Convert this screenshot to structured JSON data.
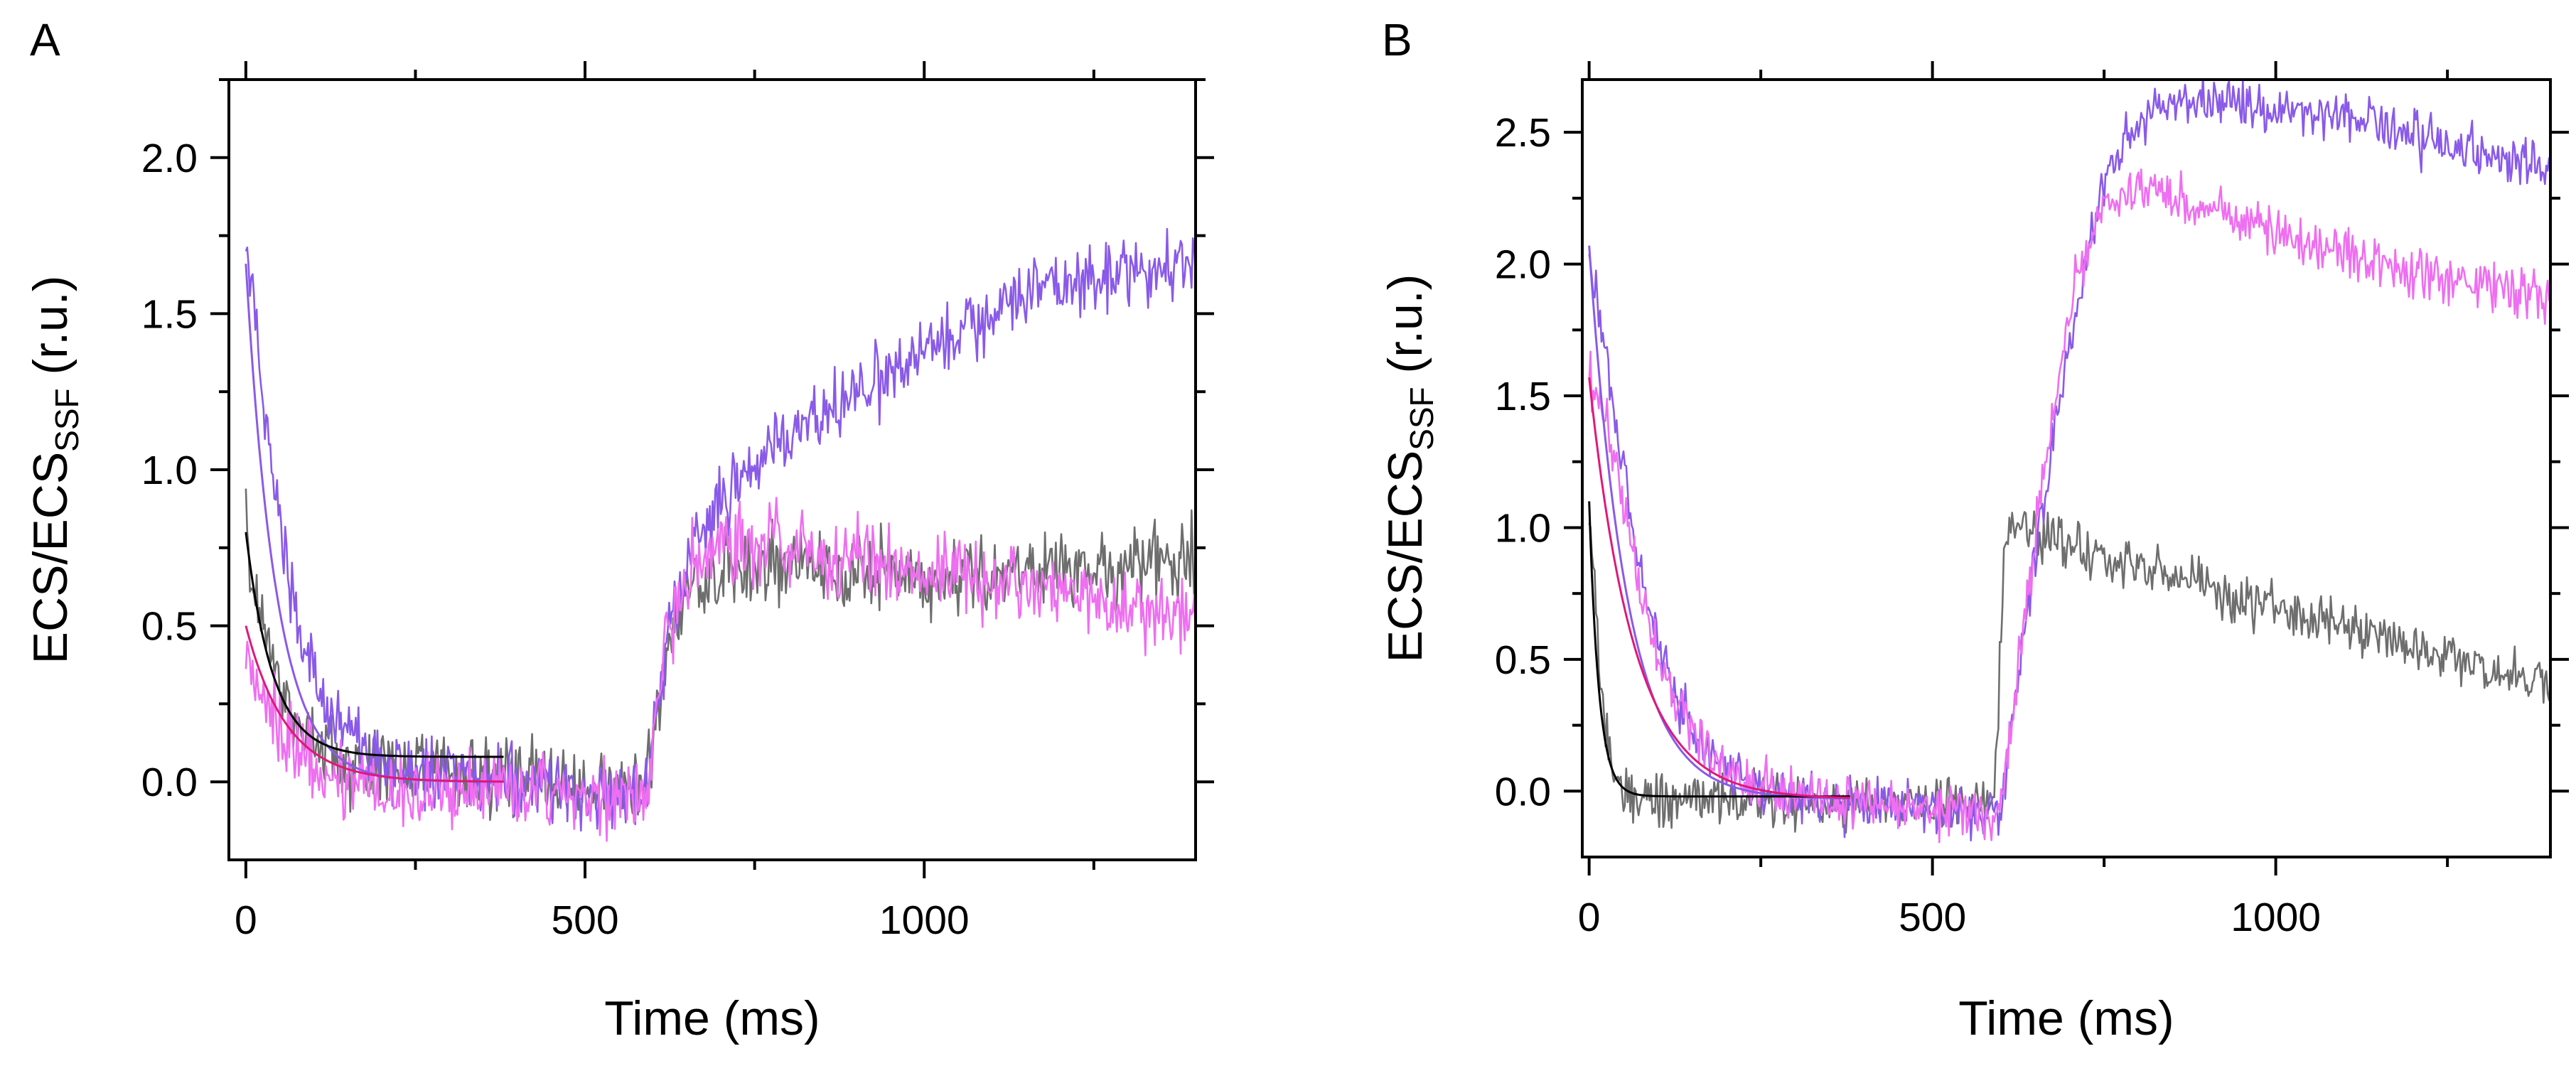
{
  "chart_data": [
    {
      "panel": "A",
      "type": "line",
      "xlabel": "Time (ms)",
      "ylabel": {
        "main": "ECS/ECS",
        "subscript": "SSF",
        "unit": " (r.u.)"
      },
      "xlim": [
        -25,
        1400
      ],
      "ylim": [
        -0.25,
        2.25
      ],
      "xticks": [
        0,
        500,
        1000
      ],
      "xtick_labels": [
        "0",
        "500",
        "1000"
      ],
      "yticks": [
        0.0,
        0.5,
        1.0,
        1.5,
        2.0
      ],
      "ytick_labels": [
        "0.0",
        "0.5",
        "1.0",
        "1.5",
        "2.0"
      ],
      "colors": {
        "purple": "#8a5ae8",
        "pink": "#ee6ff0",
        "gray": "#6e6e6e",
        "fit_black": "#000000",
        "fit_magenta": "#e0187a"
      },
      "series": [
        {
          "name": "gray trace",
          "color": "#6e6e6e",
          "noise": 0.09,
          "x": [
            0,
            20,
            40,
            60,
            100,
            150,
            200,
            300,
            400,
            500,
            590,
            620,
            650,
            700,
            800,
            900,
            1000,
            1100,
            1200,
            1300,
            1400
          ],
          "y": [
            0.8,
            0.55,
            0.38,
            0.25,
            0.12,
            0.06,
            0.04,
            0.03,
            0.01,
            -0.02,
            -0.03,
            0.4,
            0.62,
            0.68,
            0.7,
            0.68,
            0.67,
            0.68,
            0.68,
            0.69,
            0.7
          ]
        },
        {
          "name": "purple trace",
          "color": "#8a5ae8",
          "noise": 0.08,
          "x": [
            0,
            20,
            40,
            60,
            80,
            100,
            130,
            160,
            200,
            300,
            400,
            500,
            590,
            620,
            650,
            700,
            750,
            800,
            900,
            1000,
            1100,
            1200,
            1300,
            1400
          ],
          "y": [
            1.72,
            1.35,
            1.0,
            0.72,
            0.5,
            0.35,
            0.2,
            0.12,
            0.06,
            0.02,
            0.0,
            -0.03,
            -0.04,
            0.45,
            0.72,
            0.9,
            1.02,
            1.1,
            1.24,
            1.38,
            1.5,
            1.6,
            1.65,
            1.67
          ]
        },
        {
          "name": "pink trace",
          "color": "#ee6ff0",
          "noise": 0.09,
          "x": [
            0,
            20,
            40,
            60,
            100,
            150,
            200,
            300,
            400,
            500,
            590,
            620,
            650,
            700,
            800,
            900,
            1000,
            1100,
            1200,
            1300,
            1400
          ],
          "y": [
            0.42,
            0.33,
            0.22,
            0.14,
            0.05,
            0.0,
            -0.02,
            -0.03,
            -0.02,
            -0.04,
            -0.04,
            0.45,
            0.7,
            0.76,
            0.76,
            0.72,
            0.68,
            0.64,
            0.6,
            0.56,
            0.52
          ]
        },
        {
          "name": "fit purple",
          "color": "#8a5ae8",
          "width": 3,
          "fit": {
            "type": "exp",
            "a": 1.66,
            "tau": 45,
            "c": 0.0,
            "x0": 0,
            "x1": 380
          }
        },
        {
          "name": "fit black",
          "color": "#000000",
          "width": 3,
          "fit": {
            "type": "exp",
            "a": 0.72,
            "tau": 40,
            "c": 0.08,
            "x0": 0,
            "x1": 380
          }
        },
        {
          "name": "fit magenta",
          "color": "#e0187a",
          "width": 3,
          "fit": {
            "type": "exp",
            "a": 0.5,
            "tau": 60,
            "c": 0.0,
            "x0": 0,
            "x1": 380
          }
        }
      ]
    },
    {
      "panel": "B",
      "type": "line",
      "xlabel": "Time (ms)",
      "ylabel": {
        "main": "ECS/ECS",
        "subscript": "SSF",
        "unit": " (r.u.)"
      },
      "xlim": [
        -10,
        1400
      ],
      "ylim": [
        -0.25,
        2.7
      ],
      "xticks": [
        0,
        500,
        1000
      ],
      "xtick_labels": [
        "0",
        "500",
        "1000"
      ],
      "yticks": [
        0.0,
        0.5,
        1.0,
        1.5,
        2.0,
        2.5
      ],
      "ytick_labels": [
        "0.0",
        "0.5",
        "1.0",
        "1.5",
        "2.0",
        "2.5"
      ],
      "colors": {
        "purple": "#8a5ae8",
        "pink": "#ee6ff0",
        "gray": "#6e6e6e",
        "fit_black": "#000000",
        "fit_magenta": "#e0187a"
      },
      "series": [
        {
          "name": "gray trace",
          "color": "#6e6e6e",
          "noise": 0.07,
          "x": [
            0,
            10,
            20,
            30,
            50,
            80,
            150,
            300,
            450,
            590,
            605,
            620,
            650,
            700,
            800,
            900,
            1000,
            1100,
            1200,
            1300,
            1400
          ],
          "y": [
            1.05,
            0.7,
            0.35,
            0.12,
            0.0,
            -0.02,
            -0.03,
            -0.04,
            -0.05,
            -0.06,
            0.95,
            1.0,
            0.98,
            0.92,
            0.85,
            0.78,
            0.7,
            0.62,
            0.55,
            0.47,
            0.42
          ]
        },
        {
          "name": "purple trace",
          "color": "#8a5ae8",
          "noise": 0.07,
          "x": [
            0,
            20,
            40,
            60,
            80,
            100,
            130,
            160,
            200,
            250,
            300,
            400,
            500,
            600,
            610,
            650,
            700,
            750,
            800,
            850,
            900,
            1000,
            1100,
            1200,
            1300,
            1400
          ],
          "y": [
            2.0,
            1.75,
            1.38,
            1.05,
            0.78,
            0.57,
            0.35,
            0.2,
            0.08,
            0.02,
            -0.02,
            -0.05,
            -0.07,
            -0.08,
            0.15,
            0.9,
            1.7,
            2.3,
            2.55,
            2.62,
            2.62,
            2.58,
            2.55,
            2.48,
            2.42,
            2.35
          ]
        },
        {
          "name": "pink trace",
          "color": "#ee6ff0",
          "noise": 0.07,
          "x": [
            0,
            20,
            40,
            60,
            80,
            100,
            130,
            160,
            200,
            250,
            300,
            400,
            500,
            600,
            610,
            650,
            700,
            750,
            800,
            900,
            1000,
            1100,
            1200,
            1300,
            1400
          ],
          "y": [
            1.55,
            1.45,
            1.22,
            0.95,
            0.72,
            0.52,
            0.32,
            0.18,
            0.07,
            0.02,
            -0.02,
            -0.05,
            -0.07,
            -0.08,
            0.15,
            1.0,
            1.85,
            2.25,
            2.28,
            2.22,
            2.12,
            2.04,
            1.98,
            1.92,
            1.88
          ]
        },
        {
          "name": "fit purple",
          "color": "#8a5ae8",
          "width": 3,
          "fit": {
            "type": "exp",
            "a": 2.1,
            "tau": 55,
            "c": -0.03,
            "x0": 0,
            "x1": 380
          }
        },
        {
          "name": "fit black",
          "color": "#000000",
          "width": 3,
          "fit": {
            "type": "exp",
            "a": 1.12,
            "tau": 14,
            "c": -0.02,
            "x0": 0,
            "x1": 380
          }
        },
        {
          "name": "fit magenta",
          "color": "#e0187a",
          "width": 3,
          "fit": {
            "type": "exp",
            "a": 1.6,
            "tau": 65,
            "c": -0.03,
            "x0": 0,
            "x1": 380
          }
        }
      ]
    }
  ]
}
